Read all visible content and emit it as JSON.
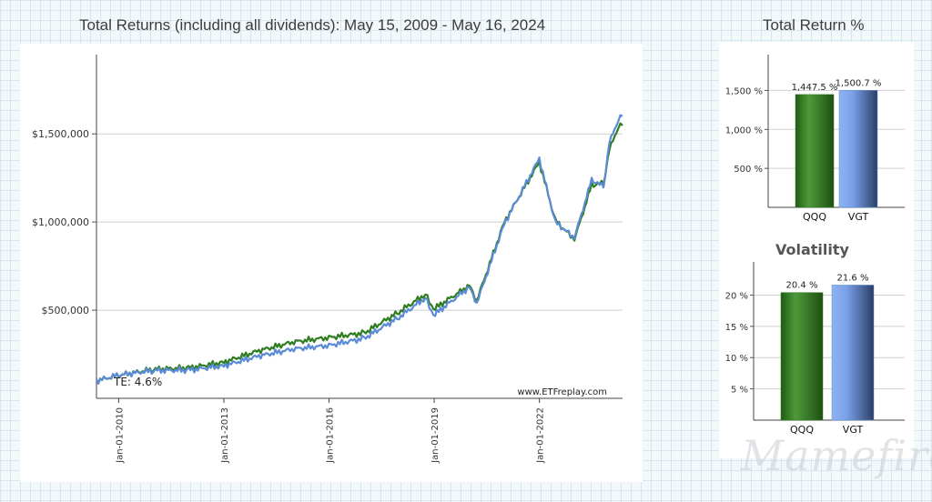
{
  "main_title": "Total Returns (including all dividends): May 15, 2009 - May 16, 2024",
  "side_title": "Total Return %",
  "watermark": "Mamefire",
  "colors": {
    "qqq": "#2e7d1f",
    "vgt": "#5b8bd6"
  },
  "chart_data": [
    {
      "type": "line",
      "title": "Total Returns (including all dividends): May 15, 2009 - May 16, 2024",
      "x_range": [
        "2009-05-15",
        "2024-05-16"
      ],
      "ylim": [
        0,
        1950000
      ],
      "y_ticks": [
        500000,
        1000000,
        1500000
      ],
      "y_tick_labels": [
        "$500,000",
        "$1,000,000",
        "$1,500,000"
      ],
      "x_ticks": [
        "2010-01-01",
        "2013-01-01",
        "2016-01-01",
        "2019-01-01",
        "2022-01-01"
      ],
      "x_tick_labels": [
        "Jan-01-2010",
        "Jan-01-2013",
        "Jan-01-2016",
        "Jan-01-2019",
        "Jan-01-2022"
      ],
      "grid": true,
      "annotation": "TE:  4.6%",
      "source_label": "www.ETFreplay.com",
      "series": [
        {
          "name": "QQQ",
          "color": "#2e7d1f",
          "points": [
            [
              "2009-05-15",
              100000
            ],
            [
              "2009-12-31",
              130000
            ],
            [
              "2010-12-31",
              165000
            ],
            [
              "2011-12-31",
              172000
            ],
            [
              "2012-12-31",
              205000
            ],
            [
              "2013-12-31",
              270000
            ],
            [
              "2014-12-31",
              320000
            ],
            [
              "2015-12-31",
              345000
            ],
            [
              "2016-12-31",
              370000
            ],
            [
              "2017-12-31",
              490000
            ],
            [
              "2018-09-30",
              590000
            ],
            [
              "2018-12-24",
              505000
            ],
            [
              "2019-12-31",
              640000
            ],
            [
              "2020-03-20",
              555000
            ],
            [
              "2020-12-31",
              1000000
            ],
            [
              "2021-12-31",
              1340000
            ],
            [
              "2022-06-15",
              1010000
            ],
            [
              "2022-12-31",
              900000
            ],
            [
              "2023-06-30",
              1210000
            ],
            [
              "2023-10-31",
              1220000
            ],
            [
              "2023-12-31",
              1410000
            ],
            [
              "2024-03-31",
              1540000
            ],
            [
              "2024-05-16",
              1547500
            ]
          ]
        },
        {
          "name": "VGT",
          "color": "#5b8bd6",
          "points": [
            [
              "2009-05-15",
              100000
            ],
            [
              "2009-12-31",
              132000
            ],
            [
              "2010-12-31",
              158000
            ],
            [
              "2011-12-31",
              160000
            ],
            [
              "2012-12-31",
              185000
            ],
            [
              "2013-12-31",
              240000
            ],
            [
              "2014-12-31",
              280000
            ],
            [
              "2015-12-31",
              300000
            ],
            [
              "2016-12-31",
              340000
            ],
            [
              "2017-12-31",
              460000
            ],
            [
              "2018-09-30",
              570000
            ],
            [
              "2018-12-24",
              470000
            ],
            [
              "2019-12-31",
              630000
            ],
            [
              "2020-03-20",
              540000
            ],
            [
              "2020-12-31",
              990000
            ],
            [
              "2021-12-31",
              1360000
            ],
            [
              "2022-06-15",
              1000000
            ],
            [
              "2022-12-31",
              910000
            ],
            [
              "2023-06-30",
              1240000
            ],
            [
              "2023-10-31",
              1200000
            ],
            [
              "2023-12-31",
              1450000
            ],
            [
              "2024-03-31",
              1580000
            ],
            [
              "2024-05-16",
              1600700
            ]
          ]
        }
      ]
    },
    {
      "type": "bar",
      "title": "Total Return %",
      "categories": [
        "QQQ",
        "VGT"
      ],
      "values": [
        1447.5,
        1500.7
      ],
      "value_labels": [
        "1,447.5 %",
        "1,500.7 %"
      ],
      "ylim": [
        0,
        1960
      ],
      "y_ticks": [
        500,
        1000,
        1500
      ],
      "y_tick_labels": [
        "500 %",
        "1,000 %",
        "1,500 %"
      ],
      "grid": true
    },
    {
      "type": "bar",
      "title": "Volatility",
      "categories": [
        "QQQ",
        "VGT"
      ],
      "values": [
        20.4,
        21.6
      ],
      "value_labels": [
        "20.4 %",
        "21.6 %"
      ],
      "ylim": [
        0,
        25.3
      ],
      "y_ticks": [
        5,
        10,
        15,
        20
      ],
      "y_tick_labels": [
        "5 %",
        "10 %",
        "15 %",
        "20 %"
      ],
      "grid": true
    }
  ]
}
